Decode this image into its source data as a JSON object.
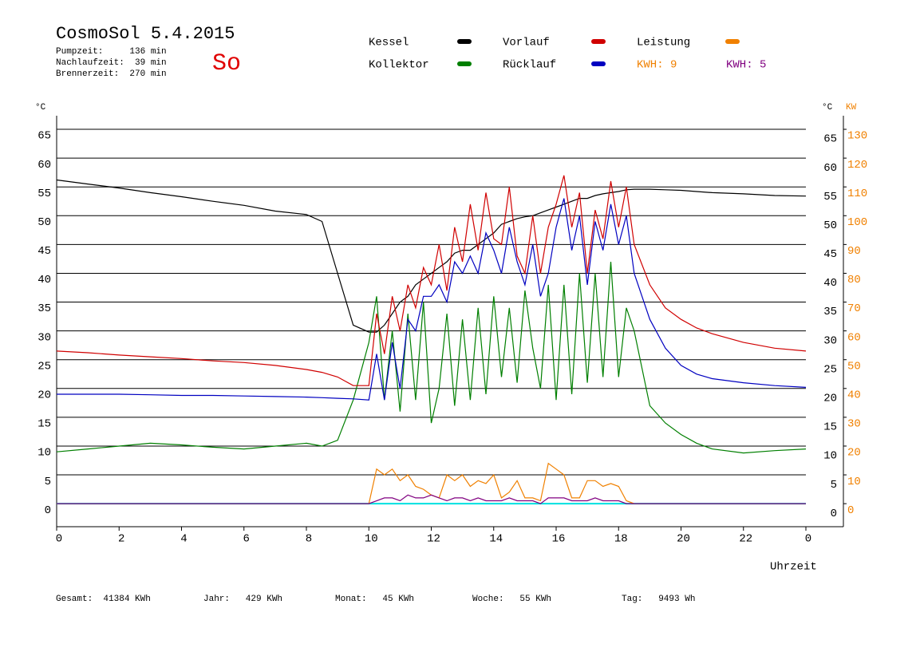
{
  "header": {
    "title": "CosmoSol 5.4.2015",
    "day": "So",
    "info": [
      "Pumpzeit:     136 min",
      "Nachlaufzeit:  39 min",
      "Brennerzeit:  270 min"
    ]
  },
  "chart_data": {
    "type": "line",
    "x_label": "Uhrzeit",
    "y_label": "°C",
    "y2_label": "KW",
    "x": [
      0,
      1,
      2,
      3,
      4,
      5,
      6,
      7,
      8,
      8.5,
      9,
      9.5,
      10,
      10.25,
      10.5,
      10.75,
      11,
      11.25,
      11.5,
      11.75,
      12,
      12.25,
      12.5,
      12.75,
      13,
      13.25,
      13.5,
      13.75,
      14,
      14.25,
      14.5,
      14.75,
      15,
      15.25,
      15.5,
      15.75,
      16,
      16.25,
      16.5,
      16.75,
      17,
      17.25,
      17.5,
      17.75,
      18,
      18.25,
      18.5,
      19,
      19.5,
      20,
      20.5,
      21,
      22,
      23,
      24
    ],
    "series": [
      {
        "name": "Kessel",
        "color": "#000000",
        "values": [
          56.2,
          55.5,
          54.8,
          54,
          53.3,
          52.5,
          51.8,
          50.8,
          50.2,
          49,
          40,
          31,
          29.8,
          29.8,
          31,
          33,
          35,
          36,
          38,
          39,
          40,
          41,
          42,
          43.5,
          44,
          44,
          45,
          46,
          47,
          48.5,
          49,
          49.5,
          49.8,
          50,
          50.5,
          51,
          51.5,
          52,
          52.5,
          53,
          53,
          53.5,
          53.8,
          54,
          54.2,
          54.5,
          54.6,
          54.6,
          54.5,
          54.4,
          54.2,
          54,
          53.8,
          53.5,
          53.4
        ]
      },
      {
        "name": "Kollektor",
        "color": "#007f00",
        "values": [
          9,
          9.5,
          10,
          10.5,
          10.2,
          9.8,
          9.5,
          10,
          10.5,
          10,
          11,
          18,
          28,
          36,
          18,
          30,
          16,
          33,
          18,
          35,
          14,
          20,
          33,
          17,
          32,
          18,
          34,
          19,
          36,
          22,
          34,
          21,
          37,
          27,
          20,
          38,
          18,
          38,
          19,
          40,
          21,
          40,
          22,
          42,
          22,
          34,
          30,
          17,
          14,
          12,
          10.5,
          9.5,
          8.8,
          9.2,
          9.5
        ]
      },
      {
        "name": "Vorlauf",
        "color": "#d00000",
        "values": [
          26.5,
          26.2,
          25.8,
          25.5,
          25.2,
          24.8,
          24.5,
          24,
          23.3,
          22.8,
          22,
          20.5,
          20.5,
          33,
          26,
          36,
          30,
          38,
          34,
          41,
          38,
          45,
          37,
          48,
          42,
          52,
          44,
          54,
          46,
          45,
          55,
          43,
          40,
          50,
          40,
          48,
          52,
          57,
          48,
          54,
          40,
          51,
          46,
          56,
          48,
          55,
          45,
          38,
          34,
          32,
          30.5,
          29.5,
          28,
          27,
          26.5
        ]
      },
      {
        "name": "Rücklauf",
        "color": "#0000c0",
        "values": [
          19,
          19,
          19,
          18.9,
          18.8,
          18.8,
          18.7,
          18.6,
          18.5,
          18.4,
          18.3,
          18.2,
          18,
          26,
          18,
          28,
          20,
          32,
          30,
          36,
          36,
          38,
          35,
          42,
          40,
          43,
          40,
          47,
          44,
          40,
          48,
          42,
          38,
          45,
          36,
          40,
          48,
          53,
          44,
          50,
          38,
          49,
          44,
          52,
          45,
          50,
          40,
          32,
          27,
          24,
          22.5,
          21.7,
          21,
          20.5,
          20.2
        ]
      },
      {
        "name": "Leistung",
        "color": "#f08000",
        "axis": "y2",
        "values": [
          0,
          0,
          0,
          0,
          0,
          0,
          0,
          0,
          0,
          0,
          0,
          0,
          0,
          12,
          10,
          12,
          8,
          10,
          6,
          5,
          3,
          2,
          10,
          8,
          10,
          6,
          8,
          7,
          10,
          2,
          4,
          8,
          2,
          2,
          1,
          14,
          12,
          10,
          2,
          2,
          8,
          8,
          6,
          7,
          6,
          1,
          0,
          0,
          0,
          0,
          0,
          0,
          0,
          0,
          0
        ]
      },
      {
        "color": "#800080",
        "axis": "y2",
        "values": [
          0,
          0,
          0,
          0,
          0,
          0,
          0,
          0,
          0,
          0,
          0,
          0,
          0,
          1,
          2,
          2,
          1,
          3,
          2,
          2,
          3,
          2,
          1,
          2,
          2,
          1,
          2,
          1,
          1,
          1,
          2,
          1,
          1,
          1,
          0,
          2,
          2,
          2,
          1,
          1,
          1,
          2,
          1,
          1,
          1,
          0,
          0,
          0,
          0,
          0,
          0,
          0,
          0,
          0,
          0
        ]
      }
    ],
    "kwh_labels": [
      {
        "text": "KWH: 9",
        "color": "#f08000"
      },
      {
        "text": "KWH: 5",
        "color": "#800080"
      }
    ],
    "xlim": [
      0,
      24
    ],
    "xticks": [
      0,
      2,
      4,
      6,
      8,
      10,
      12,
      14,
      16,
      18,
      20,
      22,
      {
        "value": 24,
        "label": "0"
      }
    ],
    "ylim": [
      -4,
      67
    ],
    "yticks": [
      0,
      5,
      10,
      15,
      20,
      25,
      30,
      35,
      40,
      45,
      50,
      55,
      60,
      65
    ],
    "y2lim": [
      -8,
      134
    ],
    "y2ticks": [
      0,
      10,
      20,
      30,
      40,
      50,
      60,
      70,
      80,
      90,
      100,
      110,
      120,
      130
    ],
    "grid": true,
    "zero_line_color": "#00e0e0"
  },
  "footer": [
    "Gesamt:  41384 KWh",
    "Jahr:   429 KWh",
    "Monat:   45 KWh",
    "Woche:   55 KWh",
    "Tag:   9493 Wh"
  ]
}
